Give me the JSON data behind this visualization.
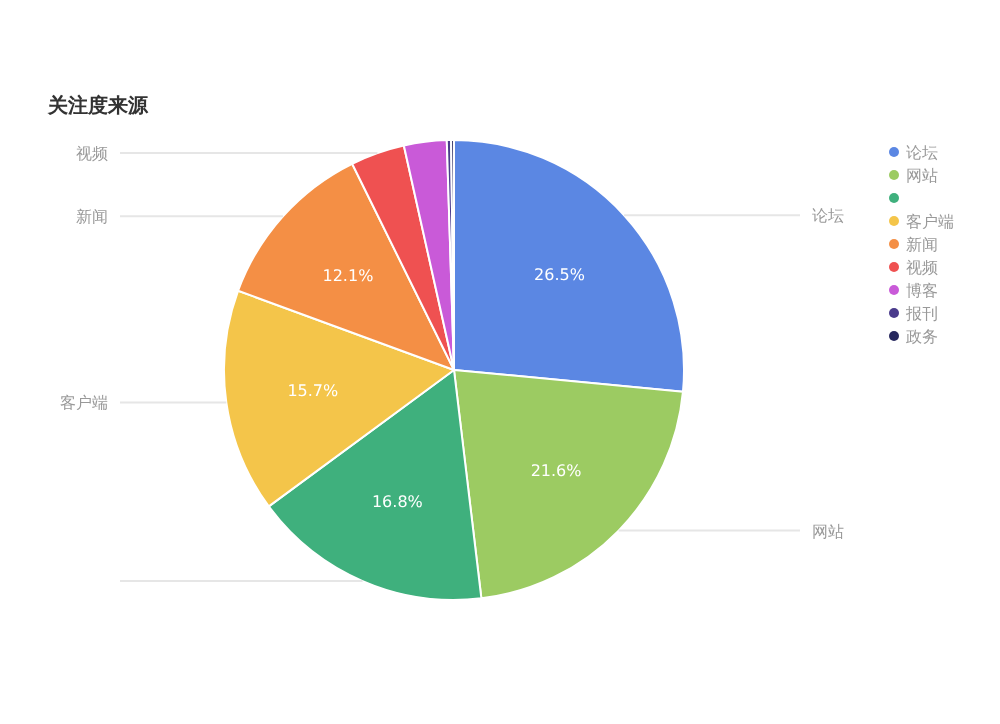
{
  "chart_data": {
    "type": "pie",
    "title": "关注度来源",
    "categories": [
      "论坛",
      "网站",
      null,
      "客户端",
      "新闻",
      "视频",
      "博客",
      "报刊",
      "政务"
    ],
    "values": [
      26.5,
      21.6,
      16.8,
      15.7,
      12.1,
      3.8,
      3.0,
      0.3,
      0.2
    ],
    "value_labels": [
      "26.5%",
      "21.6%",
      "16.8%",
      "15.7%",
      "12.1%",
      null,
      null,
      null,
      null
    ],
    "colors": [
      "#5b87e3",
      "#9ccb62",
      "#3fb07d",
      "#f4c54a",
      "#f48f45",
      "#ef5151",
      "#c95ad8",
      "#4a3b8c",
      "#27285e"
    ],
    "legend": "right"
  }
}
